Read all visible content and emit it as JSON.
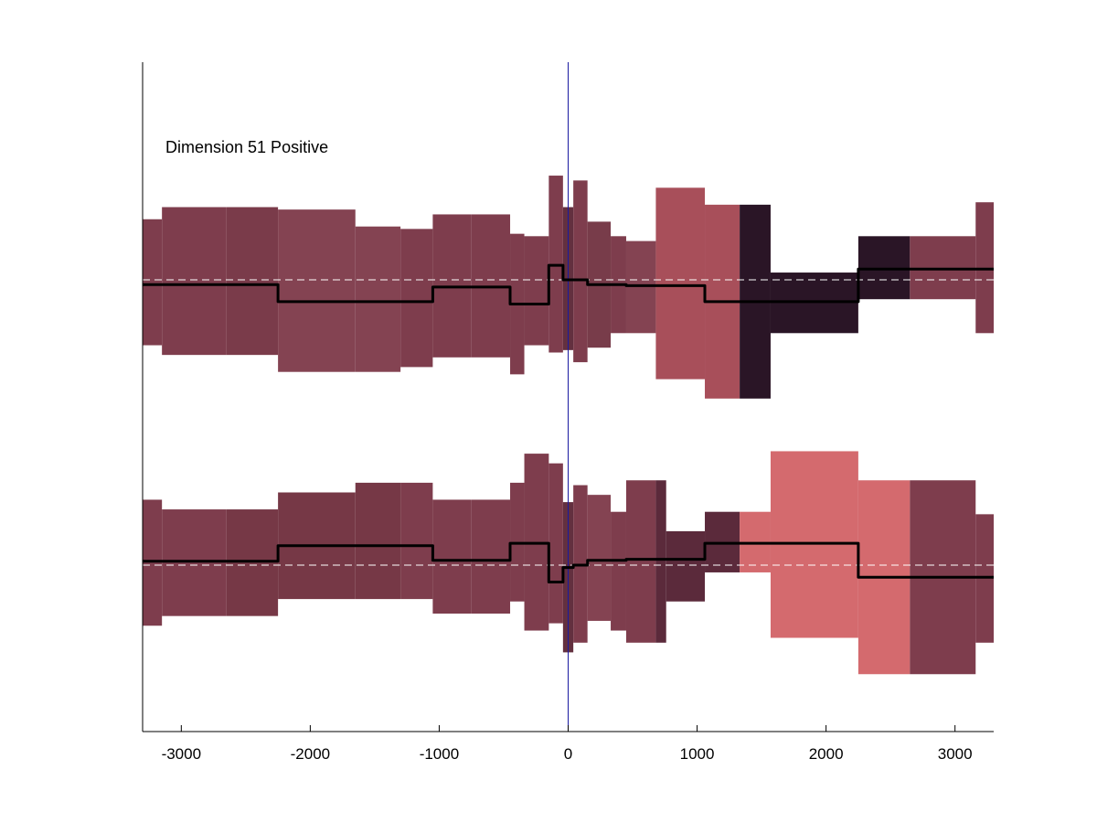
{
  "chart_data": {
    "type": "heatmap",
    "annotation": "Dimension 51 Positive",
    "xlim": [
      -3300,
      3300
    ],
    "xticks": [
      -3000,
      -2000,
      -1000,
      0,
      1000,
      2000,
      3000
    ],
    "xtick_labels": [
      "-3000",
      "-2000",
      "-1000",
      "0",
      "1000",
      "2000",
      "3000"
    ],
    "vertical_marker_x": 0,
    "colors": {
      "marker_line": "#1a1aa0",
      "line": "#000000",
      "dashed": "#ffffff",
      "axis": "#000000"
    },
    "tracks": [
      {
        "baseline": 0,
        "segments": [
          {
            "x0": -3300,
            "x1": -3150,
            "lo": -1.35,
            "hi": 1.25,
            "color": "#7e3d4d",
            "mean": -0.1
          },
          {
            "x0": -3150,
            "x1": -2650,
            "lo": -1.55,
            "hi": 1.5,
            "color": "#7e3d4d",
            "mean": -0.1
          },
          {
            "x0": -2650,
            "x1": -2250,
            "lo": -1.55,
            "hi": 1.5,
            "color": "#7a3b4a",
            "mean": -0.1
          },
          {
            "x0": -2250,
            "x1": -1650,
            "lo": -1.9,
            "hi": 1.45,
            "color": "#844352",
            "mean": -0.45
          },
          {
            "x0": -1650,
            "x1": -1300,
            "lo": -1.9,
            "hi": 1.1,
            "color": "#844352",
            "mean": -0.45
          },
          {
            "x0": -1300,
            "x1": -1050,
            "lo": -1.8,
            "hi": 1.05,
            "color": "#7e3d4d",
            "mean": -0.45
          },
          {
            "x0": -1050,
            "x1": -750,
            "lo": -1.6,
            "hi": 1.35,
            "color": "#7e3d4d",
            "mean": -0.15
          },
          {
            "x0": -750,
            "x1": -450,
            "lo": -1.6,
            "hi": 1.35,
            "color": "#7e3d4d",
            "mean": -0.15
          },
          {
            "x0": -450,
            "x1": -340,
            "lo": -1.95,
            "hi": 0.95,
            "color": "#7e3d4d",
            "mean": -0.5
          },
          {
            "x0": -340,
            "x1": -150,
            "lo": -1.35,
            "hi": 0.9,
            "color": "#7e3d4d",
            "mean": -0.5
          },
          {
            "x0": -150,
            "x1": -40,
            "lo": -1.5,
            "hi": 2.15,
            "color": "#7e3d4d",
            "mean": 0.3
          },
          {
            "x0": -40,
            "x1": 40,
            "lo": -1.45,
            "hi": 1.5,
            "color": "#63303f",
            "mean": 0.0
          },
          {
            "x0": 40,
            "x1": 150,
            "lo": -1.7,
            "hi": 2.05,
            "color": "#7e3d4d",
            "mean": 0.0
          },
          {
            "x0": 150,
            "x1": 330,
            "lo": -1.4,
            "hi": 1.2,
            "color": "#783c4a",
            "mean": -0.1
          },
          {
            "x0": 330,
            "x1": 450,
            "lo": -1.1,
            "hi": 0.9,
            "color": "#7e3d4d",
            "mean": -0.1
          },
          {
            "x0": 450,
            "x1": 680,
            "lo": -1.1,
            "hi": 0.8,
            "color": "#844352",
            "mean": -0.12
          },
          {
            "x0": 680,
            "x1": 1060,
            "lo": -2.05,
            "hi": 1.9,
            "color": "#a84f5a",
            "mean": -0.12
          },
          {
            "x0": 1060,
            "x1": 1330,
            "lo": -2.45,
            "hi": 1.55,
            "color": "#a84f5a",
            "mean": -0.45
          },
          {
            "x0": 1330,
            "x1": 1570,
            "lo": -2.45,
            "hi": 1.55,
            "color": "#2a1526",
            "mean": -0.45
          },
          {
            "x0": 1570,
            "x1": 2250,
            "lo": -1.1,
            "hi": 0.15,
            "color": "#2a1526",
            "mean": -0.45
          },
          {
            "x0": 2250,
            "x1": 2650,
            "lo": -0.4,
            "hi": 0.9,
            "color": "#2a1526",
            "mean": 0.22
          },
          {
            "x0": 2650,
            "x1": 3160,
            "lo": -0.4,
            "hi": 0.9,
            "color": "#7e3d4d",
            "mean": 0.22
          },
          {
            "x0": 3160,
            "x1": 3300,
            "lo": -1.1,
            "hi": 1.6,
            "color": "#7e3d4d",
            "mean": 0.22
          }
        ]
      },
      {
        "baseline": 0,
        "segments": [
          {
            "x0": -3300,
            "x1": -3150,
            "lo": -1.25,
            "hi": 1.35,
            "color": "#7e3d4d",
            "mean": 0.08
          },
          {
            "x0": -3150,
            "x1": -2650,
            "lo": -1.05,
            "hi": 1.15,
            "color": "#7e3d4d",
            "mean": 0.08
          },
          {
            "x0": -2650,
            "x1": -2250,
            "lo": -1.05,
            "hi": 1.15,
            "color": "#763846",
            "mean": 0.08
          },
          {
            "x0": -2250,
            "x1": -1650,
            "lo": -0.7,
            "hi": 1.5,
            "color": "#763846",
            "mean": 0.4
          },
          {
            "x0": -1650,
            "x1": -1300,
            "lo": -0.7,
            "hi": 1.7,
            "color": "#763846",
            "mean": 0.4
          },
          {
            "x0": -1300,
            "x1": -1050,
            "lo": -0.7,
            "hi": 1.7,
            "color": "#7e3d4d",
            "mean": 0.4
          },
          {
            "x0": -1050,
            "x1": -750,
            "lo": -1.0,
            "hi": 1.35,
            "color": "#7e3d4d",
            "mean": 0.1
          },
          {
            "x0": -750,
            "x1": -450,
            "lo": -1.0,
            "hi": 1.35,
            "color": "#7e3d4d",
            "mean": 0.1
          },
          {
            "x0": -450,
            "x1": -340,
            "lo": -0.75,
            "hi": 1.7,
            "color": "#7e3d4d",
            "mean": 0.45
          },
          {
            "x0": -340,
            "x1": -150,
            "lo": -1.35,
            "hi": 2.3,
            "color": "#7e3d4d",
            "mean": 0.45
          },
          {
            "x0": -150,
            "x1": -40,
            "lo": -1.2,
            "hi": 2.1,
            "color": "#7e3d4d",
            "mean": -0.35
          },
          {
            "x0": -40,
            "x1": 40,
            "lo": -1.8,
            "hi": 1.3,
            "color": "#63303f",
            "mean": -0.05
          },
          {
            "x0": 40,
            "x1": 150,
            "lo": -1.6,
            "hi": 1.65,
            "color": "#7e3d4d",
            "mean": 0.0
          },
          {
            "x0": 150,
            "x1": 330,
            "lo": -1.15,
            "hi": 1.45,
            "color": "#844352",
            "mean": 0.1
          },
          {
            "x0": 330,
            "x1": 450,
            "lo": -1.35,
            "hi": 1.1,
            "color": "#7e3d4d",
            "mean": 0.1
          },
          {
            "x0": 450,
            "x1": 680,
            "lo": -1.6,
            "hi": 1.75,
            "color": "#7e3d4d",
            "mean": 0.12
          },
          {
            "x0": 680,
            "x1": 760,
            "lo": -1.6,
            "hi": 1.75,
            "color": "#5b2a3b",
            "mean": 0.12
          },
          {
            "x0": 760,
            "x1": 1060,
            "lo": -0.75,
            "hi": 0.7,
            "color": "#5b2a3b",
            "mean": 0.12
          },
          {
            "x0": 1060,
            "x1": 1330,
            "lo": -0.15,
            "hi": 1.1,
            "color": "#5b2a3b",
            "mean": 0.45
          },
          {
            "x0": 1330,
            "x1": 1570,
            "lo": -0.15,
            "hi": 1.1,
            "color": "#d46a6e",
            "mean": 0.45
          },
          {
            "x0": 1570,
            "x1": 2250,
            "lo": -1.5,
            "hi": 2.35,
            "color": "#d46a6e",
            "mean": 0.45
          },
          {
            "x0": 2250,
            "x1": 2650,
            "lo": -2.25,
            "hi": 1.75,
            "color": "#d46a6e",
            "mean": -0.25
          },
          {
            "x0": 2650,
            "x1": 3160,
            "lo": -2.25,
            "hi": 1.75,
            "color": "#7e3d4d",
            "mean": -0.25
          },
          {
            "x0": 3160,
            "x1": 3300,
            "lo": -1.6,
            "hi": 1.05,
            "color": "#7e3d4d",
            "mean": -0.25
          }
        ]
      }
    ]
  }
}
